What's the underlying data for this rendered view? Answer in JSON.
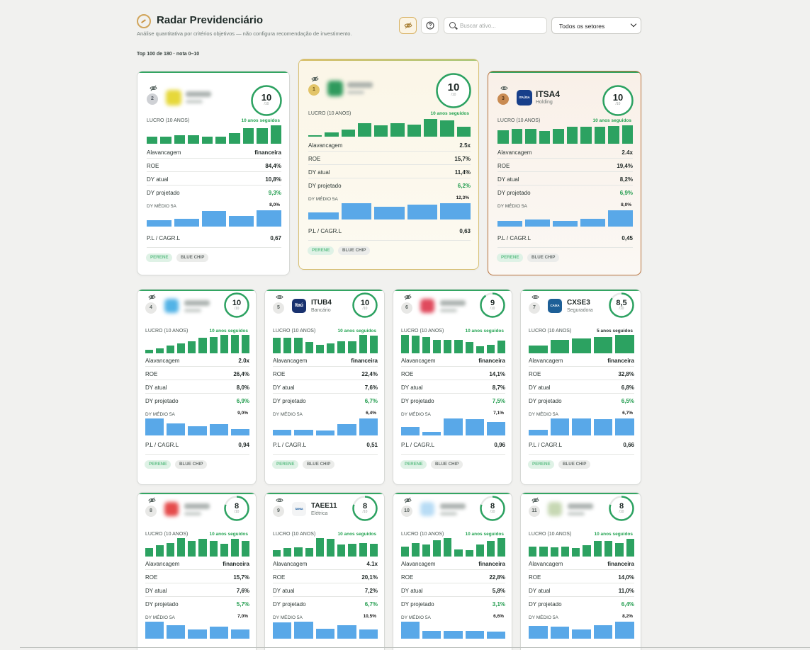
{
  "header": {
    "title": "Radar Previdenciário",
    "subtitle": "Análise quantitativa por critérios objetivos — não configura recomendação de investimento.",
    "search_placeholder": "Buscar ativo...",
    "sector_select": "Todos os setores",
    "eye_icon": "eye-off-icon",
    "help_icon": "question-icon"
  },
  "count_text": "Top 100 de 180 · nota 0–10",
  "labels": {
    "lucro": "LUCRO (10 ANOS)",
    "alavancagem": "Alavancagem",
    "roe": "ROE",
    "dy_atual": "DY atual",
    "dy_projetado": "DY projetado",
    "dy_medio": "DY MÉDIO 5A",
    "pl_cagr": "P.L / CAGR.L",
    "score_den": "/10",
    "tag_perene": "PERENE",
    "tag_bluechip": "BLUE CHIP"
  },
  "colors": {
    "green": "#2ca261",
    "blue": "#59a8e8",
    "gold": "#d7bf72",
    "bronze": "#b9733d"
  },
  "cards": [
    {
      "rank": "1",
      "ticker": "",
      "sector": "",
      "hidden": true,
      "logo": "#2f9a5d",
      "score": "10",
      "score_pct": 1.0,
      "streak": "10 anos seguidos",
      "lucro": [
        0.08,
        0.22,
        0.4,
        0.75,
        0.6,
        0.75,
        0.65,
        0.95,
        0.88,
        0.55
      ],
      "alavancagem": "2.5x",
      "roe": "15,7%",
      "dy_atual": "11,4%",
      "dy_projetado": "6,2%",
      "dy_medio_max": "12,3%",
      "dy_medio": [
        0.45,
        1.0,
        0.8,
        0.9,
        1.15
      ],
      "pl_cagr": "0,63",
      "tags": [
        "PERENE",
        "BLUE CHIP"
      ]
    },
    {
      "rank": "2",
      "ticker": "",
      "sector": "",
      "hidden": true,
      "logo": "#e6d83a",
      "score": "10",
      "score_pct": 1.0,
      "streak": "10 anos seguidos",
      "lucro": [
        0.38,
        0.38,
        0.48,
        0.48,
        0.4,
        0.4,
        0.58,
        0.85,
        0.85,
        1.0
      ],
      "alavancagem": "financeira",
      "roe": "84,4%",
      "dy_atual": "10,8%",
      "dy_projetado": "9,3%",
      "dy_medio_max": "8,0%",
      "dy_medio": [
        0.4,
        0.5,
        0.95,
        0.65,
        1.0
      ],
      "pl_cagr": "0,67",
      "tags": [
        "PERENE",
        "BLUE CHIP"
      ]
    },
    {
      "rank": "3",
      "ticker": "ITSA4",
      "sector": "Holding",
      "hidden": false,
      "logo": "#173f8a",
      "logo_text": "ITAÚSA",
      "score": "10",
      "score_pct": 1.0,
      "streak": "10 anos seguidos",
      "lucro": [
        0.75,
        0.8,
        0.8,
        0.7,
        0.8,
        0.92,
        0.92,
        0.92,
        0.96,
        1.0
      ],
      "alavancagem": "2.4x",
      "roe": "19,4%",
      "dy_atual": "8,2%",
      "dy_projetado": "6,9%",
      "dy_medio_max": "8,0%",
      "dy_medio": [
        0.35,
        0.45,
        0.35,
        0.5,
        1.0
      ],
      "pl_cagr": "0,45",
      "tags": [
        "PERENE",
        "BLUE CHIP"
      ]
    },
    {
      "rank": "4",
      "ticker": "",
      "sector": "",
      "hidden": true,
      "logo": "#53b3e6",
      "score": "10",
      "score_pct": 1.0,
      "streak": "10 anos seguidos",
      "lucro": [
        0.2,
        0.28,
        0.42,
        0.55,
        0.65,
        0.85,
        0.9,
        1.0,
        1.0,
        1.0
      ],
      "alavancagem": "2.0x",
      "roe": "26,4%",
      "dy_atual": "8,0%",
      "dy_projetado": "6,9%",
      "dy_medio_max": "9,0%",
      "dy_medio": [
        1.0,
        0.72,
        0.55,
        0.65,
        0.38
      ],
      "pl_cagr": "0,94",
      "tags": [
        "PERENE",
        "BLUE CHIP"
      ]
    },
    {
      "rank": "5",
      "ticker": "ITUB4",
      "sector": "Bancário",
      "hidden": false,
      "logo": "#19326f",
      "logo_text": "Itaú",
      "score": "10",
      "score_pct": 1.0,
      "streak": "10 anos seguidos",
      "lucro": [
        0.85,
        0.85,
        0.85,
        0.6,
        0.45,
        0.55,
        0.65,
        0.65,
        1.0,
        0.95
      ],
      "alavancagem": "financeira",
      "roe": "22,4%",
      "dy_atual": "7,6%",
      "dy_projetado": "6,7%",
      "dy_medio_max": "6,4%",
      "dy_medio": [
        0.35,
        0.35,
        0.3,
        0.65,
        1.0
      ],
      "pl_cagr": "0,51",
      "tags": [
        "PERENE",
        "BLUE CHIP"
      ]
    },
    {
      "rank": "6",
      "ticker": "",
      "sector": "",
      "hidden": true,
      "logo": "#e04a5d",
      "score": "9",
      "score_pct": 0.9,
      "streak": "10 anos seguidos",
      "lucro": [
        1.0,
        0.95,
        0.9,
        0.75,
        0.75,
        0.75,
        0.6,
        0.4,
        0.45,
        0.7
      ],
      "alavancagem": "financeira",
      "roe": "14,1%",
      "dy_atual": "8,7%",
      "dy_projetado": "7,5%",
      "dy_medio_max": "7,1%",
      "dy_medio": [
        0.5,
        0.2,
        1.0,
        0.95,
        0.8
      ],
      "pl_cagr": "0,96",
      "tags": [
        "PERENE",
        "BLUE CHIP"
      ]
    },
    {
      "rank": "7",
      "ticker": "CXSE3",
      "sector": "Seguradora",
      "hidden": false,
      "logo": "#1d5f97",
      "logo_text": "CAIXA",
      "score": "8,5",
      "score_pct": 0.85,
      "streak": "5 anos seguidos",
      "streak_dark": true,
      "lucro": [
        0.42,
        0.72,
        0.8,
        0.88,
        1.0
      ],
      "alavancagem": "financeira",
      "roe": "32,8%",
      "dy_atual": "6,8%",
      "dy_projetado": "6,5%",
      "dy_medio_max": "6,7%",
      "dy_medio": [
        0.35,
        1.0,
        1.0,
        0.95,
        0.98
      ],
      "pl_cagr": "0,66",
      "tags": [
        "PERENE",
        "BLUE CHIP"
      ]
    },
    {
      "rank": "8",
      "ticker": "",
      "sector": "",
      "hidden": true,
      "logo": "#e54b4b",
      "score": "8",
      "score_pct": 0.8,
      "streak": "10 anos seguidos",
      "lucro": [
        0.48,
        0.62,
        0.75,
        1.0,
        0.85,
        0.95,
        0.85,
        0.7,
        0.95,
        0.85
      ],
      "alavancagem": "financeira",
      "roe": "15,7%",
      "dy_atual": "7,6%",
      "dy_projetado": "5,7%",
      "dy_medio_max": "7,0%",
      "dy_medio": [
        1.0,
        0.8,
        0.55,
        0.7,
        0.55
      ],
      "pl_cagr": "",
      "tags": []
    },
    {
      "rank": "9",
      "ticker": "TAEE11",
      "sector": "Elétrica",
      "hidden": false,
      "logo": "#f3f4f5",
      "logo_text": "taesa",
      "score": "8",
      "score_pct": 0.8,
      "streak": "10 anos seguidos",
      "lucro": [
        0.35,
        0.45,
        0.5,
        0.45,
        1.0,
        0.95,
        0.65,
        0.7,
        0.75,
        0.7
      ],
      "alavancagem": "4.1x",
      "roe": "20,1%",
      "dy_atual": "7,2%",
      "dy_projetado": "6,7%",
      "dy_medio_max": "10,5%",
      "dy_medio": [
        0.95,
        1.0,
        0.6,
        0.8,
        0.55
      ],
      "pl_cagr": "",
      "tags": []
    },
    {
      "rank": "10",
      "ticker": "",
      "sector": "",
      "hidden": true,
      "logo": "#b8dcf5",
      "score": "8",
      "score_pct": 0.8,
      "streak": "10 anos seguidos",
      "lucro": [
        0.55,
        0.75,
        0.65,
        0.88,
        1.0,
        0.4,
        0.35,
        0.65,
        0.85,
        1.0
      ],
      "alavancagem": "financeira",
      "roe": "22,8%",
      "dy_atual": "5,8%",
      "dy_projetado": "3,1%",
      "dy_medio_max": "6,6%",
      "dy_medio": [
        1.0,
        0.45,
        0.45,
        0.45,
        0.4
      ],
      "pl_cagr": "",
      "tags": []
    },
    {
      "rank": "11",
      "ticker": "",
      "sector": "",
      "hidden": true,
      "logo": "#c7d8b4",
      "score": "8",
      "score_pct": 0.8,
      "streak": "10 anos seguidos",
      "lucro": [
        0.55,
        0.55,
        0.5,
        0.55,
        0.45,
        0.6,
        0.85,
        0.85,
        0.75,
        0.95
      ],
      "alavancagem": "financeira",
      "roe": "14,0%",
      "dy_atual": "11,0%",
      "dy_projetado": "6,4%",
      "dy_medio_max": "8,2%",
      "dy_medio": [
        0.75,
        0.7,
        0.55,
        0.8,
        1.0
      ],
      "pl_cagr": "",
      "tags": []
    }
  ]
}
